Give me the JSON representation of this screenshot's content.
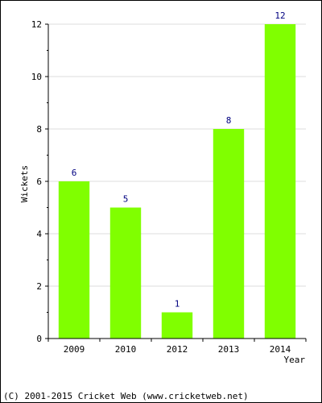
{
  "chart_data": {
    "type": "bar",
    "categories": [
      "2009",
      "2010",
      "2012",
      "2013",
      "2014"
    ],
    "values": [
      6,
      5,
      1,
      8,
      12
    ],
    "data_labels": [
      "6",
      "5",
      "1",
      "8",
      "12"
    ],
    "title": "",
    "xlabel": "Year",
    "ylabel": "Wickets",
    "ylim": [
      0,
      12
    ],
    "yticks": [
      0,
      2,
      4,
      6,
      8,
      10,
      12
    ],
    "grid": true,
    "bar_color": "#80ff00",
    "label_color": "#000080"
  },
  "footer": {
    "text": "(C) 2001-2015 Cricket Web (www.cricketweb.net)"
  }
}
